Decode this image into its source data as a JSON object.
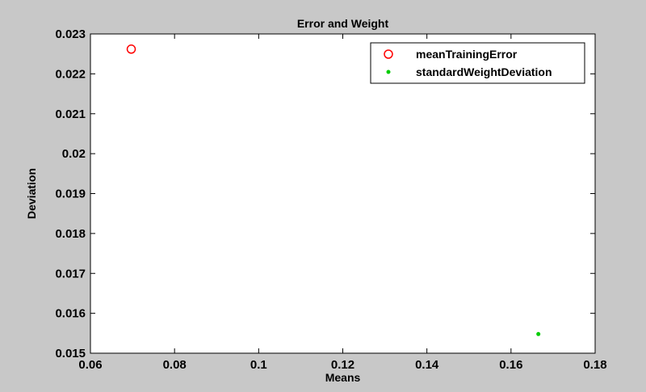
{
  "chart_data": {
    "type": "scatter",
    "title": "Error and Weight",
    "xlabel": "Means",
    "ylabel": "Deviation",
    "xlim": [
      0.06,
      0.18
    ],
    "ylim": [
      0.015,
      0.023
    ],
    "xticks": [
      "0.06",
      "0.08",
      "0.1",
      "0.12",
      "0.14",
      "0.16",
      "0.18"
    ],
    "yticks": [
      "0.015",
      "0.016",
      "0.017",
      "0.018",
      "0.019",
      "0.02",
      "0.021",
      "0.022",
      "0.023"
    ],
    "grid": false,
    "legend_position": "top-right",
    "series": [
      {
        "name": "meanTrainingError",
        "marker": "circle",
        "color": "#ff0000",
        "points": [
          {
            "x": 0.0697,
            "y": 0.02262
          }
        ]
      },
      {
        "name": "standardWeightDeviation",
        "marker": "dot",
        "color": "#00cc00",
        "points": [
          {
            "x": 0.1665,
            "y": 0.01548
          }
        ]
      }
    ]
  }
}
